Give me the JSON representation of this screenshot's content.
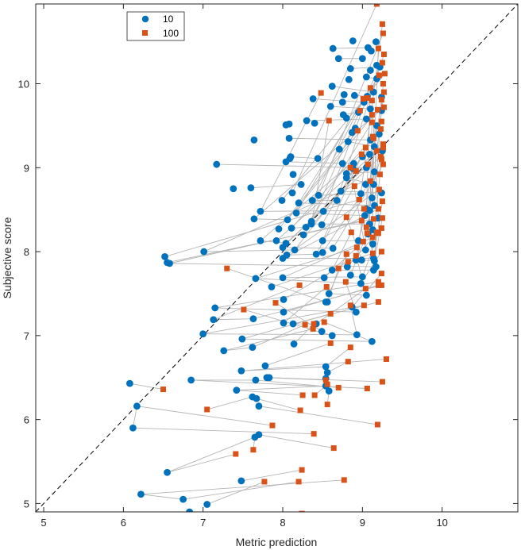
{
  "chart_data": {
    "type": "scatter",
    "title": "",
    "xlabel": "Metric prediction",
    "ylabel": "Subjective score",
    "xlim": [
      4.9,
      10.95
    ],
    "ylim": [
      4.9,
      10.95
    ],
    "xticks": [
      "5",
      "6",
      "7",
      "8",
      "9",
      "10"
    ],
    "yticks": [
      "5",
      "6",
      "7",
      "8",
      "9",
      "10"
    ],
    "grid": false,
    "legend_position": "top-left",
    "identity_line": true,
    "colors": {
      "series10": "#0072BD",
      "series100": "#D95319",
      "connector": "#b5b5b5",
      "identity": "#000000"
    },
    "series": [
      {
        "name": "10",
        "marker": "circle",
        "points": [
          [
            6.83,
            4.9
          ],
          [
            7.05,
            4.99
          ],
          [
            6.75,
            5.05
          ],
          [
            6.22,
            5.11
          ],
          [
            7.48,
            5.27
          ],
          [
            6.55,
            5.37
          ],
          [
            6.12,
            5.9
          ],
          [
            7.65,
            5.79
          ],
          [
            7.7,
            5.82
          ],
          [
            6.17,
            6.16
          ],
          [
            7.7,
            6.16
          ],
          [
            7.62,
            6.27
          ],
          [
            7.67,
            6.25
          ],
          [
            6.08,
            6.43
          ],
          [
            6.85,
            6.47
          ],
          [
            7.42,
            6.35
          ],
          [
            7.66,
            6.47
          ],
          [
            7.83,
            6.5
          ],
          [
            7.8,
            6.5
          ],
          [
            8.58,
            6.34
          ],
          [
            8.54,
            6.4
          ],
          [
            8.54,
            6.49
          ],
          [
            8.56,
            6.56
          ],
          [
            7.48,
            6.58
          ],
          [
            7.78,
            6.64
          ],
          [
            8.54,
            6.63
          ],
          [
            7.26,
            6.82
          ],
          [
            7.62,
            6.86
          ],
          [
            7.49,
            6.96
          ],
          [
            8.14,
            6.9
          ],
          [
            7.0,
            7.02
          ],
          [
            7.63,
            7.2
          ],
          [
            8.01,
            7.15
          ],
          [
            8.13,
            7.14
          ],
          [
            7.13,
            7.19
          ],
          [
            8.49,
            7.05
          ],
          [
            8.62,
            7.0
          ],
          [
            8.93,
            7.01
          ],
          [
            8.42,
            7.14
          ],
          [
            7.15,
            7.33
          ],
          [
            8.01,
            7.28
          ],
          [
            8.54,
            7.4
          ],
          [
            8.87,
            7.34
          ],
          [
            9.05,
            7.48
          ],
          [
            8.92,
            7.28
          ],
          [
            8.01,
            7.43
          ],
          [
            8.56,
            7.4
          ],
          [
            8.58,
            7.5
          ],
          [
            8.85,
            7.72
          ],
          [
            8.98,
            7.62
          ],
          [
            7.86,
            7.58
          ],
          [
            8.52,
            7.69
          ],
          [
            9.0,
            7.7
          ],
          [
            7.66,
            7.68
          ],
          [
            8.0,
            7.69
          ],
          [
            8.62,
            7.78
          ],
          [
            8.81,
            7.82
          ],
          [
            9.14,
            7.78
          ],
          [
            8.99,
            7.9
          ],
          [
            6.52,
            7.94
          ],
          [
            6.58,
            7.86
          ],
          [
            6.55,
            7.87
          ],
          [
            7.01,
            8.0
          ],
          [
            8.0,
            7.92
          ],
          [
            8.05,
            7.96
          ],
          [
            8.15,
            8.02
          ],
          [
            8.42,
            7.97
          ],
          [
            8.5,
            7.99
          ],
          [
            8.63,
            8.04
          ],
          [
            9.04,
            8.02
          ],
          [
            8.92,
            7.9
          ],
          [
            9.17,
            7.82
          ],
          [
            7.72,
            8.13
          ],
          [
            7.92,
            8.13
          ],
          [
            8.0,
            8.05
          ],
          [
            8.04,
            8.1
          ],
          [
            8.26,
            8.2
          ],
          [
            8.5,
            8.13
          ],
          [
            9.13,
            8.26
          ],
          [
            9.07,
            8.21
          ],
          [
            8.95,
            8.13
          ],
          [
            9.13,
            8.09
          ],
          [
            7.95,
            8.27
          ],
          [
            8.11,
            8.28
          ],
          [
            8.29,
            8.29
          ],
          [
            8.36,
            8.33
          ],
          [
            8.49,
            8.32
          ],
          [
            9.09,
            8.33
          ],
          [
            9.2,
            8.4
          ],
          [
            9.09,
            8.49
          ],
          [
            7.64,
            8.39
          ],
          [
            8.06,
            8.38
          ],
          [
            8.17,
            8.46
          ],
          [
            8.36,
            8.36
          ],
          [
            8.51,
            8.48
          ],
          [
            9.03,
            8.43
          ],
          [
            7.72,
            8.48
          ],
          [
            7.99,
            8.61
          ],
          [
            8.37,
            8.61
          ],
          [
            8.68,
            8.61
          ],
          [
            9.05,
            8.51
          ],
          [
            9.15,
            8.55
          ],
          [
            8.12,
            8.7
          ],
          [
            8.2,
            8.58
          ],
          [
            8.45,
            8.67
          ],
          [
            8.73,
            8.72
          ],
          [
            8.98,
            8.69
          ],
          [
            9.12,
            8.64
          ],
          [
            7.38,
            8.75
          ],
          [
            7.6,
            8.76
          ],
          [
            8.23,
            8.8
          ],
          [
            9.04,
            8.8
          ],
          [
            9.14,
            8.8
          ],
          [
            9.24,
            8.7
          ],
          [
            8.13,
            8.92
          ],
          [
            8.8,
            8.88
          ],
          [
            8.8,
            8.93
          ],
          [
            9.15,
            8.95
          ],
          [
            9.05,
            9.0
          ],
          [
            8.75,
            9.05
          ],
          [
            7.17,
            9.04
          ],
          [
            8.04,
            9.07
          ],
          [
            8.1,
            9.13
          ],
          [
            8.09,
            9.11
          ],
          [
            8.44,
            9.11
          ],
          [
            9.0,
            9.13
          ],
          [
            9.09,
            9.16
          ],
          [
            8.71,
            9.22
          ],
          [
            9.15,
            9.25
          ],
          [
            9.25,
            9.2
          ],
          [
            7.64,
            9.33
          ],
          [
            8.08,
            9.35
          ],
          [
            8.82,
            9.31
          ],
          [
            9.1,
            9.33
          ],
          [
            9.21,
            9.4
          ],
          [
            9.18,
            9.5
          ],
          [
            9.05,
            9.58
          ],
          [
            8.8,
            9.59
          ],
          [
            8.4,
            9.53
          ],
          [
            8.3,
            9.56
          ],
          [
            8.08,
            9.52
          ],
          [
            8.04,
            9.51
          ],
          [
            8.76,
            9.63
          ],
          [
            8.95,
            9.66
          ],
          [
            9.1,
            9.7
          ],
          [
            9.24,
            9.68
          ],
          [
            8.6,
            9.73
          ],
          [
            8.75,
            9.78
          ],
          [
            9.02,
            9.78
          ],
          [
            9.14,
            9.9
          ],
          [
            8.38,
            9.82
          ],
          [
            8.77,
            9.87
          ],
          [
            8.9,
            9.86
          ],
          [
            9.06,
            9.85
          ],
          [
            9.24,
            9.84
          ],
          [
            8.62,
            9.97
          ],
          [
            8.83,
            10.05
          ],
          [
            9.05,
            10.08
          ],
          [
            9.18,
            10.06
          ],
          [
            8.85,
            10.18
          ],
          [
            9.1,
            10.16
          ],
          [
            8.7,
            10.3
          ],
          [
            9.0,
            10.3
          ],
          [
            9.22,
            10.2
          ],
          [
            8.63,
            10.42
          ],
          [
            9.07,
            10.43
          ],
          [
            9.17,
            10.5
          ],
          [
            8.88,
            10.51
          ],
          [
            9.11,
            10.39
          ],
          [
            9.18,
            10.22
          ],
          [
            8.87,
            9.42
          ],
          [
            8.91,
            9.47
          ],
          [
            8.89,
            9.05
          ],
          [
            8.88,
            8.99
          ],
          [
            9.14,
            7.92
          ],
          [
            9.15,
            7.89
          ],
          [
            9.12,
            6.93
          ]
        ]
      },
      {
        "name": "100",
        "marker": "square",
        "points": [
          [
            8.24,
            4.88
          ],
          [
            7.77,
            5.26
          ],
          [
            8.2,
            5.26
          ],
          [
            8.77,
            5.28
          ],
          [
            8.24,
            5.4
          ],
          [
            8.64,
            5.66
          ],
          [
            7.41,
            5.59
          ],
          [
            7.63,
            5.64
          ],
          [
            8.39,
            5.83
          ],
          [
            7.87,
            5.93
          ],
          [
            8.22,
            6.11
          ],
          [
            9.19,
            5.94
          ],
          [
            7.05,
            6.12
          ],
          [
            6.5,
            6.36
          ],
          [
            8.25,
            6.29
          ],
          [
            8.4,
            6.29
          ],
          [
            8.56,
            6.18
          ],
          [
            8.56,
            6.42
          ],
          [
            8.7,
            6.38
          ],
          [
            9.06,
            6.37
          ],
          [
            9.25,
            6.45
          ],
          [
            8.54,
            6.47
          ],
          [
            8.82,
            6.69
          ],
          [
            9.3,
            6.72
          ],
          [
            8.85,
            6.86
          ],
          [
            8.6,
            6.91
          ],
          [
            8.38,
            7.08
          ],
          [
            8.52,
            7.16
          ],
          [
            8.28,
            7.13
          ],
          [
            7.51,
            7.31
          ],
          [
            7.91,
            7.39
          ],
          [
            8.6,
            7.26
          ],
          [
            8.39,
            7.14
          ],
          [
            8.85,
            7.36
          ],
          [
            9.02,
            7.36
          ],
          [
            9.2,
            7.4
          ],
          [
            7.3,
            7.8
          ],
          [
            8.21,
            7.6
          ],
          [
            8.55,
            7.58
          ],
          [
            8.79,
            7.64
          ],
          [
            9.04,
            7.56
          ],
          [
            9.2,
            7.64
          ],
          [
            8.7,
            7.8
          ],
          [
            8.82,
            7.88
          ],
          [
            8.92,
            7.95
          ],
          [
            9.13,
            7.98
          ],
          [
            9.24,
            7.74
          ],
          [
            9.24,
            7.6
          ],
          [
            8.8,
            7.97
          ],
          [
            8.93,
            8.05
          ],
          [
            9.01,
            8.12
          ],
          [
            9.13,
            8.17
          ],
          [
            9.2,
            8.22
          ],
          [
            9.24,
            8.0
          ],
          [
            8.86,
            8.23
          ],
          [
            9.06,
            8.22
          ],
          [
            9.18,
            8.23
          ],
          [
            9.24,
            8.28
          ],
          [
            8.8,
            8.41
          ],
          [
            8.99,
            8.37
          ],
          [
            9.14,
            8.39
          ],
          [
            9.25,
            8.4
          ],
          [
            9.02,
            8.51
          ],
          [
            9.2,
            8.51
          ],
          [
            8.96,
            8.62
          ],
          [
            9.25,
            8.6
          ],
          [
            8.9,
            8.78
          ],
          [
            9.1,
            8.84
          ],
          [
            9.21,
            8.74
          ],
          [
            9.22,
            8.92
          ],
          [
            9.26,
            9.04
          ],
          [
            9.07,
            9.04
          ],
          [
            8.99,
            9.16
          ],
          [
            9.18,
            9.2
          ],
          [
            9.23,
            9.13
          ],
          [
            9.04,
            9.24
          ],
          [
            9.26,
            9.24
          ],
          [
            9.14,
            9.35
          ],
          [
            9.23,
            9.46
          ],
          [
            9.26,
            9.28
          ],
          [
            8.94,
            9.44
          ],
          [
            9.12,
            9.54
          ],
          [
            9.24,
            9.55
          ],
          [
            8.97,
            9.68
          ],
          [
            9.19,
            9.69
          ],
          [
            9.27,
            9.72
          ],
          [
            9.01,
            9.82
          ],
          [
            9.24,
            9.81
          ],
          [
            9.27,
            9.9
          ],
          [
            9.1,
            9.95
          ],
          [
            9.26,
            10.0
          ],
          [
            9.21,
            10.1
          ],
          [
            9.28,
            10.12
          ],
          [
            9.25,
            10.25
          ],
          [
            9.27,
            10.35
          ],
          [
            9.2,
            10.42
          ],
          [
            9.26,
            10.6
          ],
          [
            9.18,
            10.95
          ],
          [
            9.25,
            10.71
          ],
          [
            8.48,
            9.89
          ],
          [
            8.58,
            9.56
          ],
          [
            8.85,
            9.0
          ],
          [
            8.92,
            8.96
          ],
          [
            9.06,
            9.83
          ],
          [
            9.13,
            9.37
          ],
          [
            9.12,
            9.63
          ],
          [
            9.12,
            9.8
          ],
          [
            9.24,
            9.1
          ],
          [
            9.2,
            7.6
          ],
          [
            9.05,
            8.29
          ]
        ]
      }
    ]
  },
  "legend": {
    "entries": [
      "10",
      "100"
    ]
  }
}
